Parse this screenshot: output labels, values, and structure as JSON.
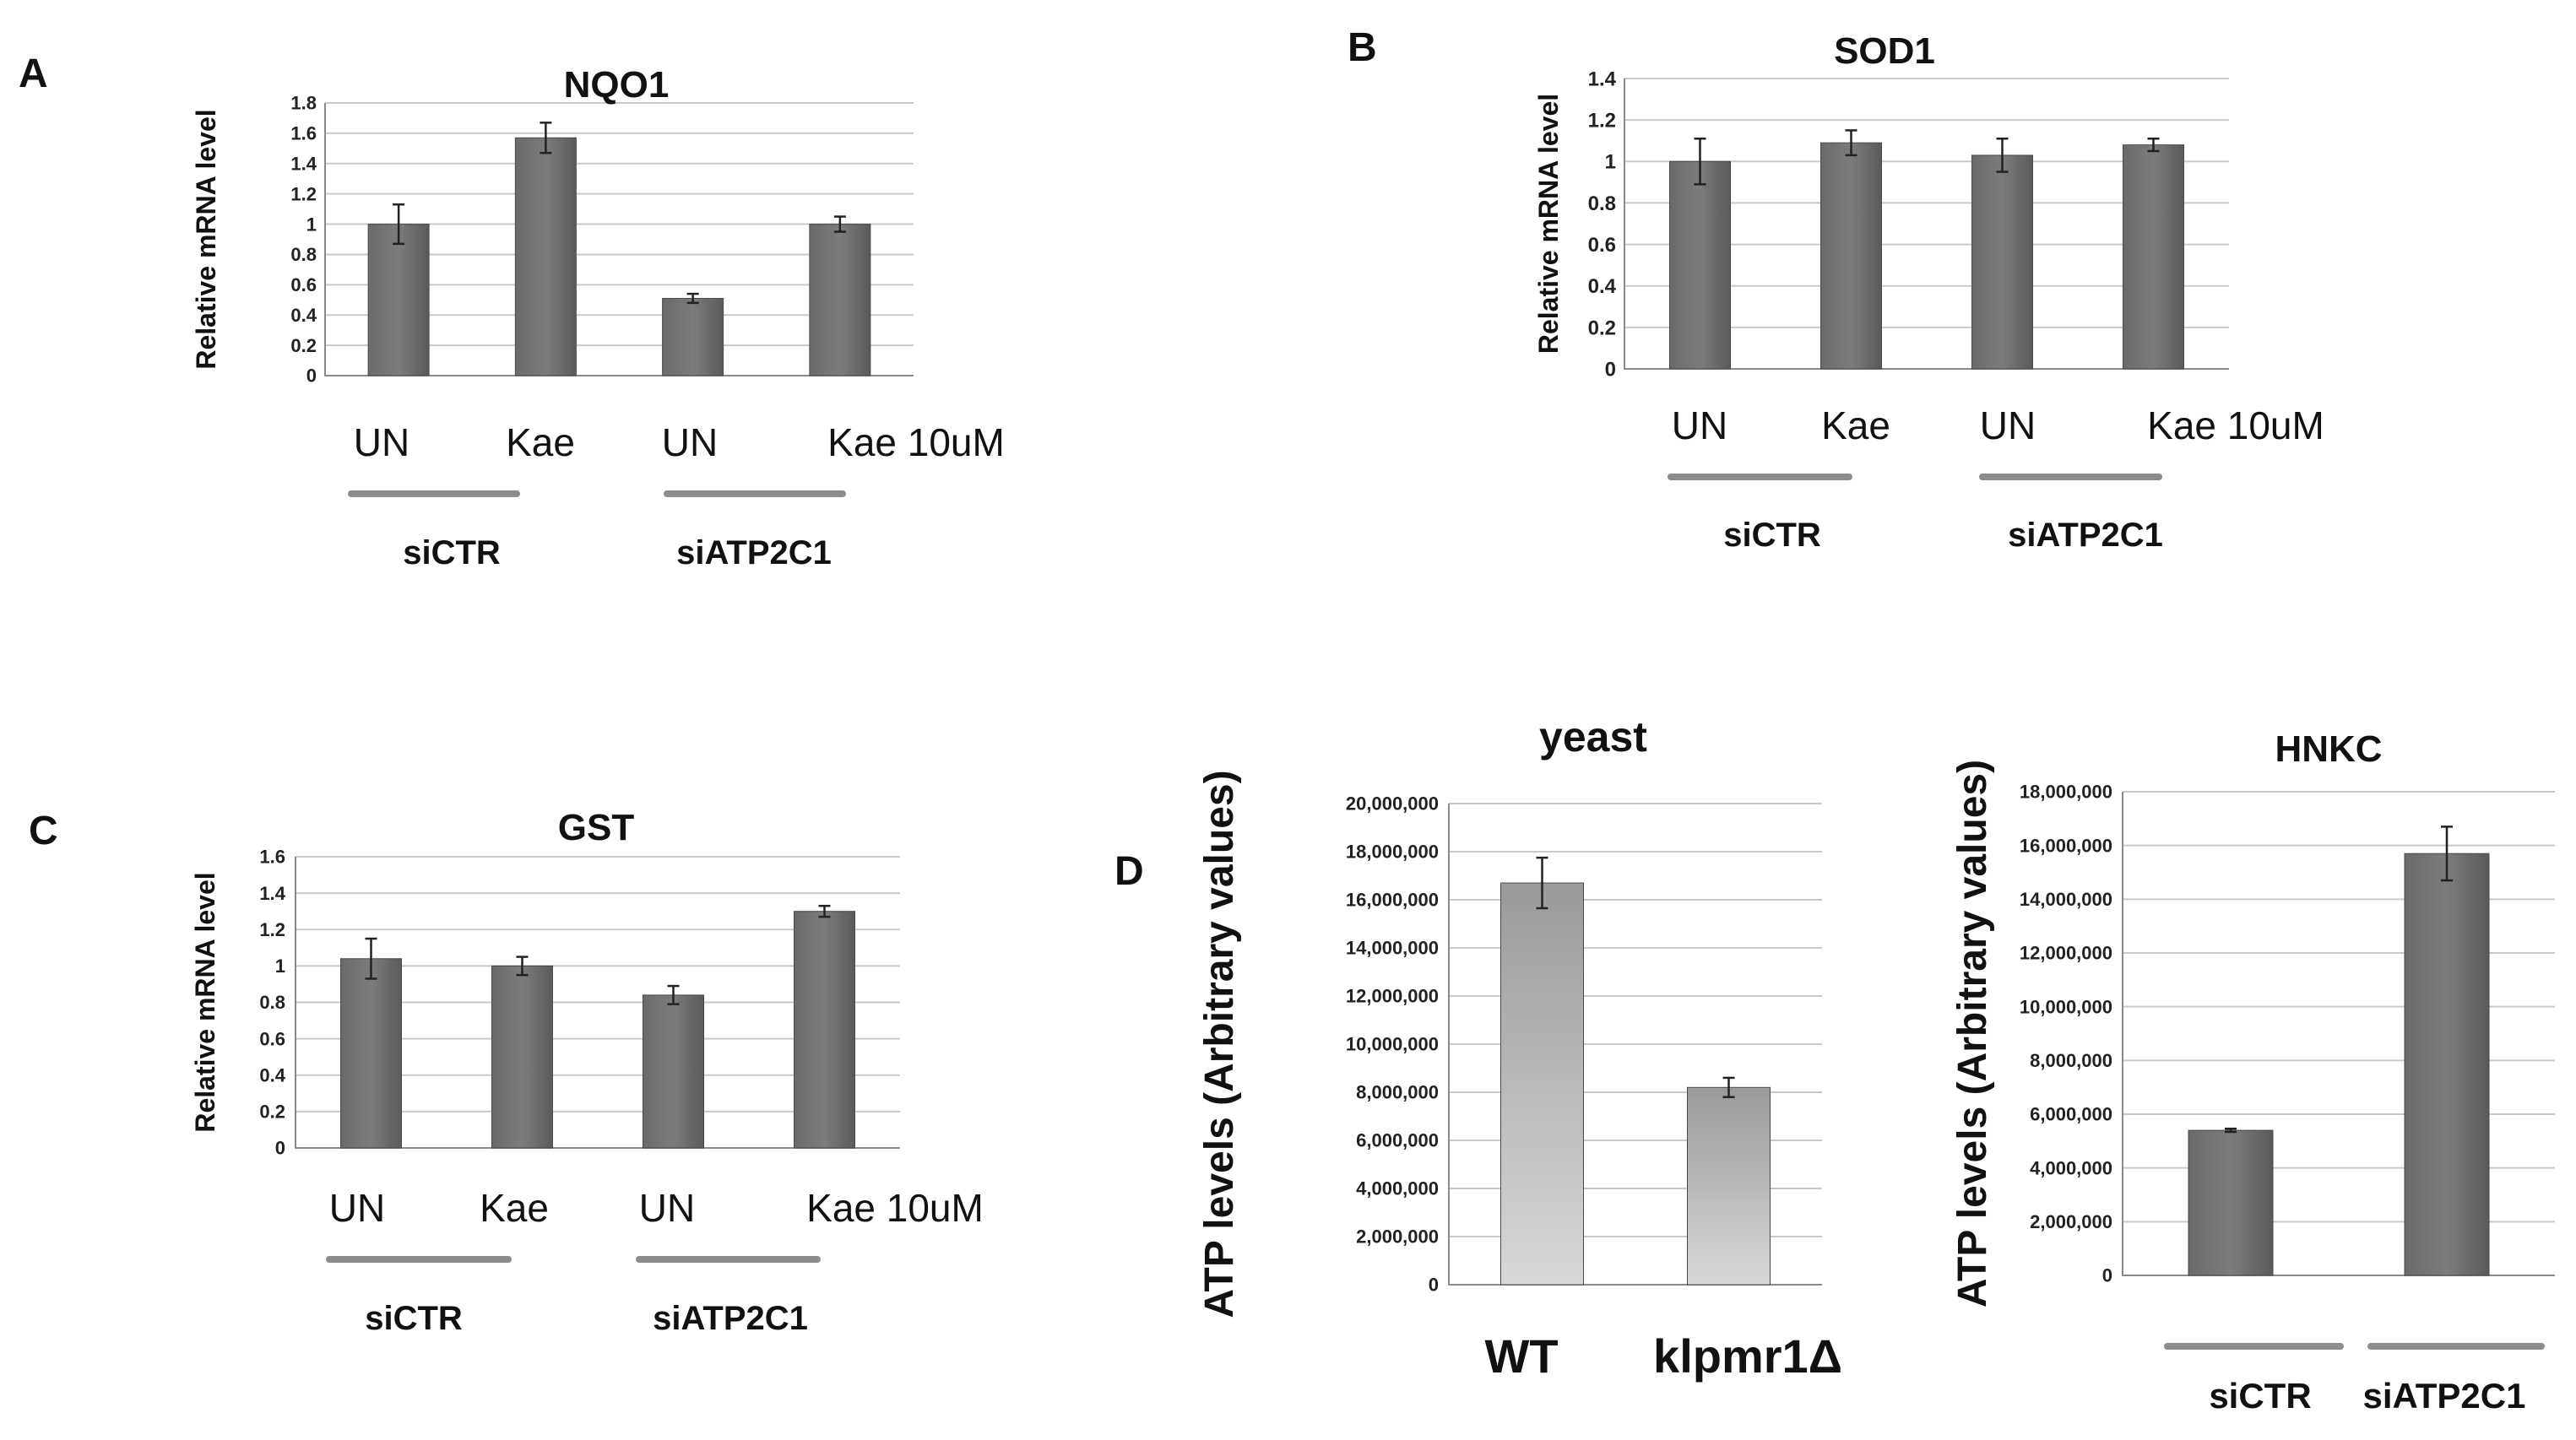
{
  "figure": {
    "panel_labels": {
      "A": "A",
      "B": "B",
      "C": "C",
      "D": "D"
    },
    "colors": {
      "bar_dark": "#555555",
      "bar_light_top": "#9a9a9a",
      "bar_light_bottom": "#d8d8d8",
      "group_line": "#8c8c8c"
    }
  },
  "chart_data": [
    {
      "id": "A",
      "type": "bar",
      "title": "NQO1",
      "ylabel": "Relative mRNA level",
      "ylim": [
        0,
        1.8
      ],
      "yticks": [
        "0",
        "0.2",
        "0.4",
        "0.6",
        "0.8",
        "1",
        "1.2",
        "1.4",
        "1.6",
        "1.8"
      ],
      "categories": [
        "UN",
        "Kae",
        "UN",
        "Kae 10uM"
      ],
      "values": [
        1.0,
        1.57,
        0.51,
        1.0
      ],
      "errors": [
        0.13,
        0.1,
        0.03,
        0.05
      ],
      "groups": [
        "siCTR",
        "siATP2C1"
      ],
      "grid": true
    },
    {
      "id": "B",
      "type": "bar",
      "title": "SOD1",
      "ylabel": "Relative mRNA level",
      "ylim": [
        0,
        1.4
      ],
      "yticks": [
        "0",
        "0.2",
        "0.4",
        "0.6",
        "0.8",
        "1",
        "1.2",
        "1.4"
      ],
      "categories": [
        "UN",
        "Kae",
        "UN",
        "Kae 10uM"
      ],
      "values": [
        1.0,
        1.09,
        1.03,
        1.08
      ],
      "errors": [
        0.11,
        0.06,
        0.08,
        0.03
      ],
      "groups": [
        "siCTR",
        "siATP2C1"
      ],
      "grid": true
    },
    {
      "id": "C",
      "type": "bar",
      "title": "GST",
      "ylabel": "Relative mRNA level",
      "ylim": [
        0,
        1.6
      ],
      "yticks": [
        "0",
        "0.2",
        "0.4",
        "0.6",
        "0.8",
        "1",
        "1.2",
        "1.4",
        "1.6"
      ],
      "categories": [
        "UN",
        "Kae",
        "UN",
        "Kae 10uM"
      ],
      "values": [
        1.04,
        1.0,
        0.84,
        1.3
      ],
      "errors": [
        0.11,
        0.05,
        0.05,
        0.03
      ],
      "groups": [
        "siCTR",
        "siATP2C1"
      ],
      "grid": true
    },
    {
      "id": "D-yeast",
      "type": "bar",
      "title": "yeast",
      "ylabel": "ATP levels (Arbitrary values)",
      "ylim": [
        0,
        20000000
      ],
      "yticks": [
        "0",
        "2,000,000",
        "4,000,000",
        "6,000,000",
        "8,000,000",
        "10,000,000",
        "12,000,000",
        "14,000,000",
        "16,000,000",
        "18,000,000",
        "20,000,000"
      ],
      "categories": [
        "WT",
        "klpmr1Δ"
      ],
      "values": [
        16700000,
        8200000
      ],
      "errors": [
        1050000,
        400000
      ],
      "grid": true
    },
    {
      "id": "D-HNKC",
      "type": "bar",
      "title": "HNKC",
      "ylabel": "ATP levels (Arbitrary values)",
      "ylim": [
        0,
        18000000
      ],
      "yticks": [
        "0",
        "2,000,000",
        "4,000,000",
        "6,000,000",
        "8,000,000",
        "10,000,000",
        "12,000,000",
        "14,000,000",
        "16,000,000",
        "18,000,000"
      ],
      "categories": [
        "siCTR",
        "siATP2C1"
      ],
      "values": [
        5400000,
        15700000
      ],
      "errors": [
        60000,
        1000000
      ],
      "grid": true
    }
  ]
}
